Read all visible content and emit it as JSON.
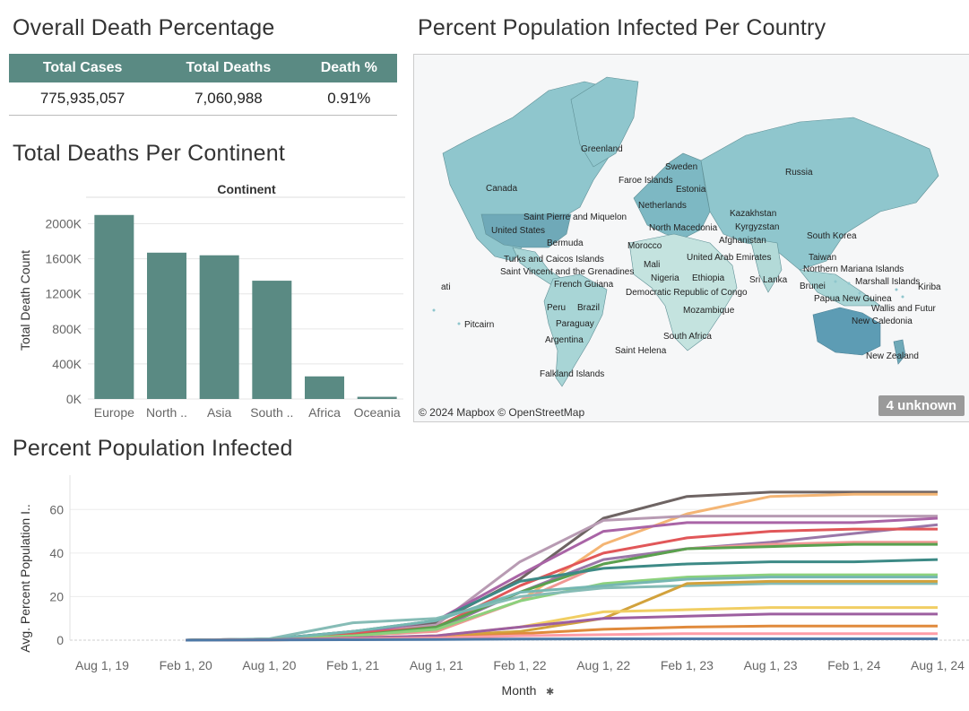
{
  "kpi": {
    "title": "Overall Death Percentage",
    "headers": [
      "Total Cases",
      "Total Deaths",
      "Death %"
    ],
    "values": [
      "775,935,057",
      "7,060,988",
      "0.91%"
    ]
  },
  "deaths_chart": {
    "title": "Total Deaths Per Continent",
    "header": "Continent",
    "ylabel": "Total Death Count",
    "yticks": [
      "0K",
      "400K",
      "800K",
      "1200K",
      "1600K",
      "2000K"
    ],
    "bar_color": "#5a8a83"
  },
  "map": {
    "title": "Percent Population Infected Per Country",
    "credit": "© 2024 Mapbox © OpenStreetMap",
    "unknown_badge": "4 unknown",
    "labels": [
      "Greenland",
      "Sweden",
      "Faroe Islands",
      "Estonia",
      "Canada",
      "Netherlands",
      "Russia",
      "Kazakhstan",
      "Saint Pierre and Miquelon",
      "North Macedonia",
      "Kyrgyzstan",
      "United States",
      "Afghanistan",
      "South Korea",
      "Bermuda",
      "Morocco",
      "Turks and Caicos Islands",
      "United Arab Emirates",
      "Taiwan",
      "Saint Vincent and the Grenadines",
      "Mali",
      "Northern Mariana Islands",
      "Nigeria",
      "Ethiopia",
      "Sri Lanka",
      "Marshall Islands",
      "French Guiana",
      "Brunei",
      "Democratic Republic of Congo",
      "Papua New Guinea",
      "Kiriba",
      "ati",
      "Peru",
      "Brazil",
      "Wallis and Futur",
      "Mozambique",
      "New Caledonia",
      "Paraguay",
      "Pitcairn",
      "South Africa",
      "Argentina",
      "Saint Helena",
      "New Zealand",
      "Falkland Islands"
    ]
  },
  "line_chart": {
    "title": "Percent Population Infected",
    "ylabel": "Avg. Percent Population I..",
    "xlabel": "Month",
    "xticks": [
      "Aug 1, 19",
      "Feb 1, 20",
      "Aug 1, 20",
      "Feb 1, 21",
      "Aug 1, 21",
      "Feb 1, 22",
      "Aug 1, 22",
      "Feb 1, 23",
      "Aug 1, 23",
      "Feb 1, 24",
      "Aug 1, 24"
    ],
    "yticks": [
      "0",
      "20",
      "40",
      "60"
    ]
  },
  "chart_data": [
    {
      "type": "bar",
      "title": "Total Deaths Per Continent",
      "xlabel": "Continent",
      "ylabel": "Total Death Count",
      "categories": [
        "Europe",
        "North ..",
        "Asia",
        "South ..",
        "Africa",
        "Oceania"
      ],
      "values": [
        2100000,
        1670000,
        1640000,
        1350000,
        258000,
        25000
      ],
      "ylim": [
        0,
        2200000
      ],
      "grid": true
    },
    {
      "type": "line",
      "title": "Percent Population Infected",
      "xlabel": "Month",
      "ylabel": "Avg. Percent Population I..",
      "ylim": [
        0,
        70
      ],
      "x": [
        "2019-08-01",
        "2020-02-01",
        "2020-08-01",
        "2021-02-01",
        "2021-08-01",
        "2022-02-01",
        "2022-08-01",
        "2023-02-01",
        "2023-08-01",
        "2024-02-01",
        "2024-08-01"
      ],
      "series": [
        {
          "color": "#6e6463",
          "values": [
            null,
            0,
            0.5,
            4,
            8,
            28,
            56,
            66,
            68,
            68,
            68
          ]
        },
        {
          "color": "#f4b574",
          "values": [
            null,
            0,
            0.3,
            2,
            5,
            18,
            44,
            58,
            66,
            67,
            67
          ]
        },
        {
          "color": "#b89bb3",
          "values": [
            null,
            0,
            0.4,
            3,
            7,
            36,
            55,
            57,
            57,
            57,
            57
          ]
        },
        {
          "color": "#a964a6",
          "values": [
            null,
            0,
            0.5,
            3,
            9,
            30,
            50,
            54,
            54,
            54,
            56
          ]
        },
        {
          "color": "#9a77a8",
          "values": [
            null,
            0,
            0.4,
            2,
            5,
            22,
            37,
            42,
            45,
            49,
            53
          ]
        },
        {
          "color": "#e15759",
          "values": [
            null,
            0,
            0.5,
            3,
            6,
            25,
            40,
            47,
            50,
            51,
            51
          ]
        },
        {
          "color": "#f09894",
          "values": [
            null,
            0,
            0.4,
            2,
            4,
            18,
            35,
            42,
            44,
            45,
            45
          ]
        },
        {
          "color": "#59a14f",
          "values": [
            null,
            0,
            0.3,
            2,
            6,
            22,
            35,
            42,
            43,
            44,
            44
          ]
        },
        {
          "color": "#3d8a86",
          "values": [
            null,
            0,
            0.5,
            4,
            9,
            27,
            33,
            35,
            36,
            36,
            37
          ]
        },
        {
          "color": "#8cd17d",
          "values": [
            null,
            0,
            0.3,
            2,
            5,
            18,
            26,
            29,
            30,
            30,
            30
          ]
        },
        {
          "color": "#86bcb6",
          "values": [
            null,
            0,
            0.6,
            8,
            10,
            20,
            24,
            25,
            26,
            26,
            26
          ]
        },
        {
          "color": "#76b7b2",
          "values": [
            null,
            0,
            0.4,
            4,
            9,
            22,
            25,
            28,
            29,
            29,
            29
          ]
        },
        {
          "color": "#d2a23c",
          "values": [
            null,
            0,
            0.2,
            1,
            2,
            4,
            10,
            26,
            27,
            27,
            27
          ]
        },
        {
          "color": "#f1ce63",
          "values": [
            null,
            0,
            0.2,
            1,
            2,
            6,
            13,
            14,
            15,
            15,
            15
          ]
        },
        {
          "color": "#9d5fa0",
          "values": [
            null,
            0,
            0.2,
            1,
            2,
            6,
            10,
            11,
            12,
            12,
            12
          ]
        },
        {
          "color": "#e08a3c",
          "values": [
            null,
            0,
            0.1,
            0.5,
            1,
            3,
            5,
            6,
            6.5,
            6.5,
            6.5
          ]
        },
        {
          "color": "#ff9da7",
          "values": [
            null,
            0,
            0.1,
            0.5,
            1,
            2,
            2.5,
            3,
            3,
            3,
            3
          ]
        },
        {
          "color": "#4e79a7",
          "values": [
            null,
            0,
            0.1,
            0.2,
            0.3,
            0.5,
            0.6,
            0.6,
            0.6,
            0.6,
            0.6
          ]
        }
      ],
      "grid": true
    }
  ]
}
